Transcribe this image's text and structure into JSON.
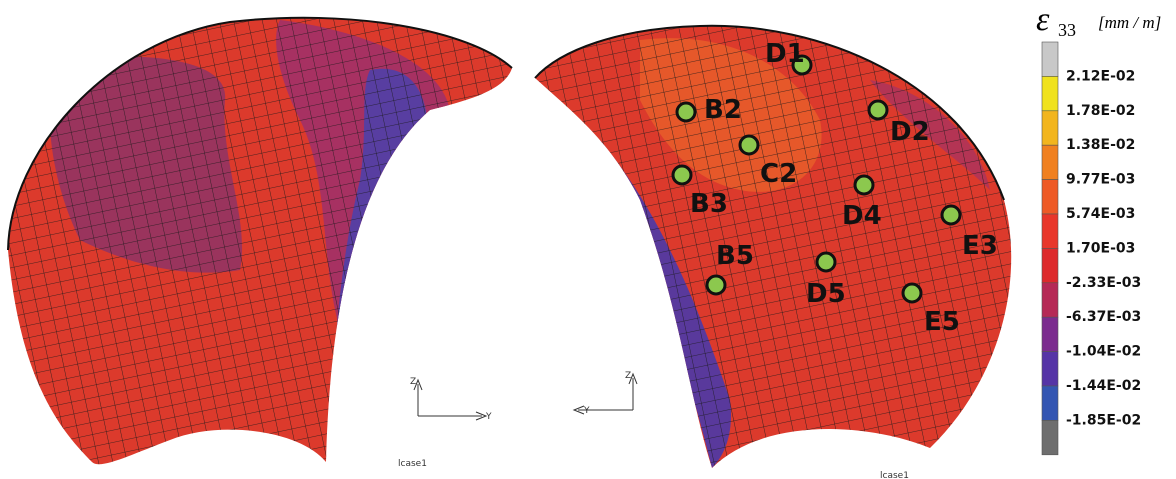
{
  "legend": {
    "symbol": "ε",
    "subscript": "33",
    "unit": "[mm / m]",
    "labels": [
      "2.12E-02",
      "1.78E-02",
      "1.38E-02",
      "9.77E-03",
      "5.74E-03",
      "1.70E-03",
      "-2.33E-03",
      "-6.37E-03",
      "-1.04E-02",
      "-1.44E-02",
      "-1.85E-02"
    ],
    "colors": [
      "#c8c8c8",
      "#f0e21e",
      "#f2b51e",
      "#f08020",
      "#ee5a26",
      "#e8362a",
      "#dd2a2c",
      "#b52a56",
      "#7b2c8e",
      "#5534a6",
      "#3456b2",
      "#6e6e6e"
    ]
  },
  "points": [
    "D1",
    "B2",
    "D2",
    "C2",
    "B3",
    "D4",
    "E3",
    "B5",
    "D5",
    "E5"
  ],
  "triads": [
    {
      "z": "Z",
      "y": "Y",
      "case": "lcase1"
    },
    {
      "z": "Z",
      "y": "Y",
      "case": "lcase1"
    }
  ]
}
